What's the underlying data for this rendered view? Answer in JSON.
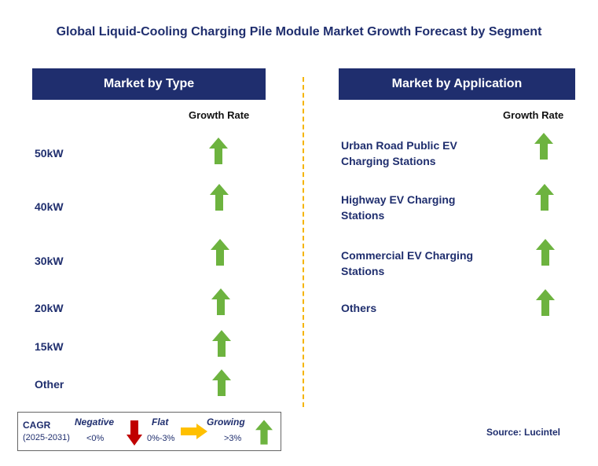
{
  "title": "Global Liquid-Cooling Charging Pile Module Market Growth Forecast by Segment",
  "left_panel": {
    "header": "Market by Type",
    "column_label": "Growth Rate",
    "rows": [
      {
        "label": "50kW",
        "trend": "growing"
      },
      {
        "label": "40kW",
        "trend": "growing"
      },
      {
        "label": "30kW",
        "trend": "growing"
      },
      {
        "label": "20kW",
        "trend": "growing"
      },
      {
        "label": "15kW",
        "trend": "growing"
      },
      {
        "label": "Other",
        "trend": "growing"
      }
    ]
  },
  "right_panel": {
    "header": "Market by Application",
    "column_label": "Growth Rate",
    "rows": [
      {
        "label_line1": "Urban Road Public EV",
        "label_line2": "Charging Stations",
        "trend": "growing"
      },
      {
        "label_line1": "Highway EV Charging",
        "label_line2": "Stations",
        "trend": "growing"
      },
      {
        "label_line1": "Commercial EV Charging",
        "label_line2": "Stations",
        "trend": "growing"
      },
      {
        "label_line1": "Others",
        "label_line2": "",
        "trend": "growing"
      }
    ]
  },
  "legend": {
    "cagr_label": "CAGR",
    "period": "(2025-2031)",
    "negative": {
      "label": "Negative",
      "range": "<0%",
      "icon": "red-down-arrow-icon"
    },
    "flat": {
      "label": "Flat",
      "range": "0%-3%",
      "icon": "orange-right-arrow-icon"
    },
    "growing": {
      "label": "Growing",
      "range": ">3%",
      "icon": "green-up-arrow-icon"
    }
  },
  "source": "Source: Lucintel",
  "colors": {
    "header_bg": "#1f2e6e",
    "text_navy": "#1f2e6e",
    "growing": "#6db33f",
    "negative": "#c00000",
    "flat": "#ffc000",
    "divider": "#f5b400"
  }
}
